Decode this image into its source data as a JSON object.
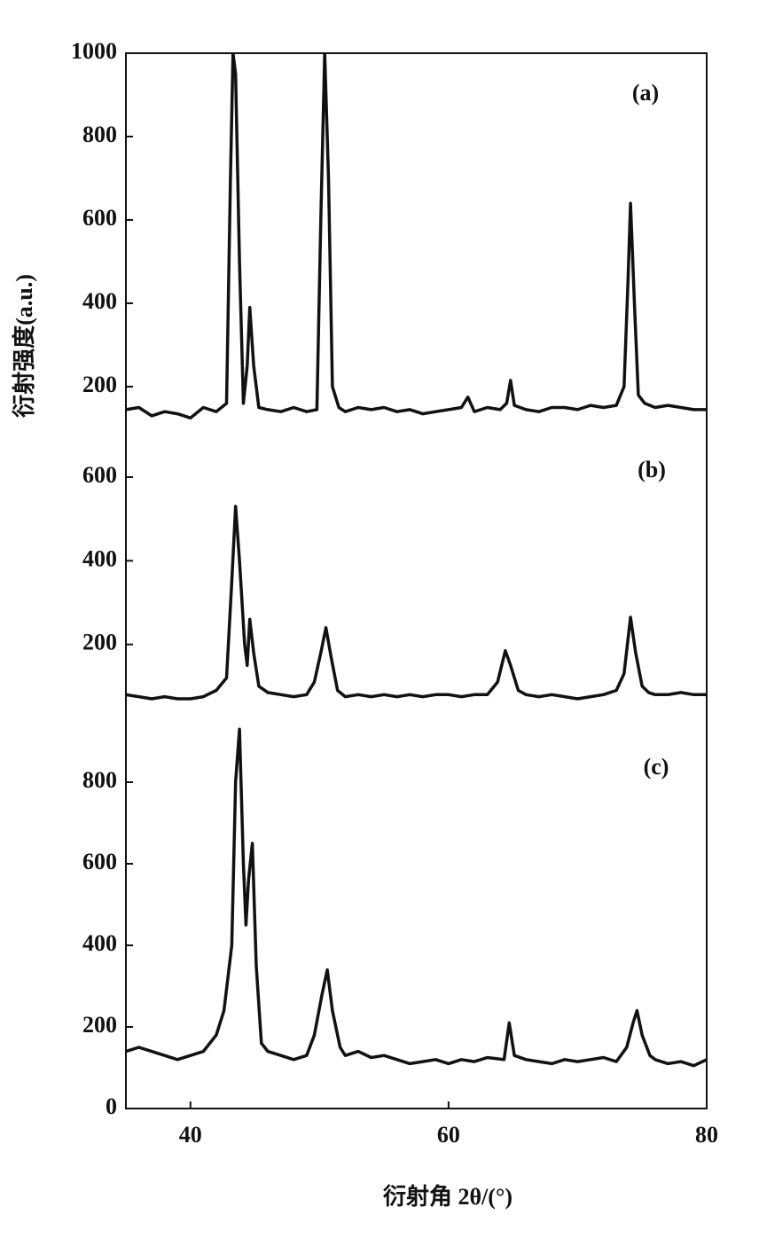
{
  "chart_data": [
    {
      "type": "line",
      "label": "(a)",
      "color": "#111111",
      "ylim": [
        100,
        1000
      ],
      "yticks": [
        200,
        400,
        600,
        800,
        1000
      ],
      "x": [
        35,
        36,
        37,
        38,
        39,
        40,
        41,
        42,
        42.8,
        43.1,
        43.3,
        43.5,
        43.8,
        44.1,
        44.4,
        44.6,
        44.9,
        45.3,
        46,
        47,
        48,
        49,
        49.8,
        50.1,
        50.4,
        50.7,
        51,
        51.5,
        52,
        53,
        54,
        55,
        56,
        57,
        58,
        59,
        60,
        61,
        61.5,
        62,
        63,
        64,
        64.5,
        64.8,
        65.1,
        66,
        67,
        68,
        69,
        70,
        71,
        72,
        73,
        73.6,
        73.9,
        74.1,
        74.4,
        74.7,
        75.2,
        76,
        77,
        78,
        79,
        80
      ],
      "values": [
        145,
        150,
        130,
        140,
        135,
        125,
        150,
        140,
        160,
        700,
        1000,
        950,
        500,
        160,
        250,
        390,
        250,
        150,
        145,
        140,
        150,
        140,
        145,
        600,
        1000,
        700,
        200,
        150,
        140,
        150,
        145,
        150,
        140,
        145,
        135,
        140,
        145,
        150,
        175,
        140,
        150,
        145,
        160,
        215,
        155,
        145,
        140,
        150,
        150,
        145,
        155,
        150,
        155,
        200,
        450,
        640,
        400,
        180,
        160,
        150,
        155,
        150,
        145,
        145
      ]
    },
    {
      "type": "line",
      "label": "(b)",
      "color": "#111111",
      "ylabel": "衍射强度(a.u.)",
      "ylim": [
        0,
        600
      ],
      "yticks": [
        200,
        400,
        600
      ],
      "x": [
        35,
        36,
        37,
        38,
        39,
        40,
        41,
        42,
        42.8,
        43.2,
        43.5,
        43.8,
        44.2,
        44.4,
        44.6,
        44.9,
        45.3,
        46,
        47,
        48,
        49,
        49.6,
        50.1,
        50.5,
        50.9,
        51.4,
        52,
        53,
        54,
        55,
        56,
        57,
        58,
        59,
        60,
        61,
        62,
        63,
        63.8,
        64.4,
        64.8,
        65.4,
        66,
        67,
        68,
        69,
        70,
        71,
        72,
        73,
        73.6,
        74.1,
        74.5,
        75,
        75.5,
        76,
        77,
        78,
        79,
        80
      ],
      "values": [
        80,
        75,
        70,
        75,
        70,
        70,
        75,
        90,
        120,
        350,
        530,
        400,
        200,
        150,
        260,
        180,
        100,
        85,
        80,
        75,
        80,
        110,
        180,
        240,
        170,
        90,
        75,
        80,
        75,
        80,
        75,
        80,
        75,
        80,
        80,
        75,
        80,
        80,
        110,
        185,
        150,
        90,
        80,
        75,
        80,
        75,
        70,
        75,
        80,
        90,
        130,
        265,
        180,
        100,
        85,
        80,
        80,
        85,
        80,
        80
      ]
    },
    {
      "type": "line",
      "label": "(c)",
      "color": "#111111",
      "xlabel": "衍射角 2θ/(°)",
      "xlim": [
        35,
        80
      ],
      "xticks": [
        40,
        60,
        80
      ],
      "ylim": [
        0,
        1000
      ],
      "yticks": [
        0,
        200,
        400,
        600,
        800
      ],
      "x": [
        35,
        36,
        37,
        38,
        39,
        40,
        41,
        42,
        42.6,
        43.2,
        43.5,
        43.8,
        44.1,
        44.3,
        44.5,
        44.8,
        45.1,
        45.5,
        46,
        47,
        48,
        49,
        49.6,
        50.2,
        50.6,
        51,
        51.6,
        52,
        53,
        54,
        55,
        56,
        57,
        58,
        59,
        60,
        61,
        62,
        63,
        64.3,
        64.7,
        65.1,
        66,
        67,
        68,
        69,
        70,
        71,
        72,
        73,
        73.8,
        74.3,
        74.6,
        75,
        75.6,
        76,
        77,
        78,
        79,
        80
      ],
      "values": [
        140,
        150,
        140,
        130,
        120,
        130,
        140,
        180,
        240,
        400,
        800,
        930,
        600,
        450,
        560,
        650,
        350,
        160,
        140,
        130,
        120,
        130,
        180,
        280,
        340,
        240,
        150,
        130,
        140,
        125,
        130,
        120,
        110,
        115,
        120,
        110,
        120,
        115,
        125,
        120,
        210,
        130,
        120,
        115,
        110,
        120,
        115,
        120,
        125,
        115,
        150,
        210,
        240,
        180,
        130,
        120,
        110,
        115,
        105,
        120
      ]
    }
  ]
}
